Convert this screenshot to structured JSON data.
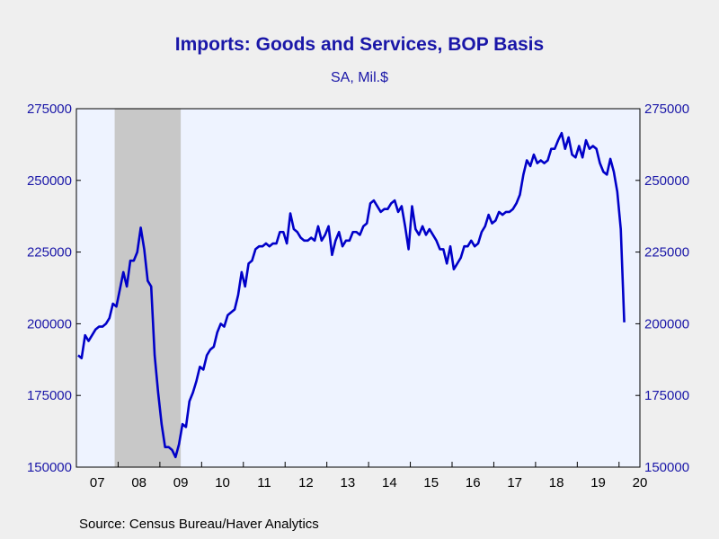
{
  "title": "Imports: Goods and Services, BOP Basis",
  "subtitle": "SA, Mil.$",
  "source": "Source:  Census Bureau/Haver Analytics",
  "colors": {
    "line": "#0000c8",
    "plot_bg": "#eef3ff",
    "recession": "#c8c8c8",
    "axis_text": "#1a17a8",
    "year_text": "#000000"
  },
  "chart_data": {
    "type": "line",
    "title": "Imports: Goods and Services, BOP Basis",
    "subtitle": "SA, Mil.$",
    "xlabel": "",
    "ylabel": "",
    "x_start": "2007-01",
    "x_range": [
      "2007-01",
      "2020-06"
    ],
    "ylim": [
      150000,
      275000
    ],
    "yticks": [
      150000,
      175000,
      200000,
      225000,
      250000,
      275000
    ],
    "y_tick_labels": [
      "150000",
      "175000",
      "200000",
      "225000",
      "250000",
      "275000"
    ],
    "x_tick_labels": [
      "07",
      "08",
      "09",
      "10",
      "11",
      "12",
      "13",
      "14",
      "15",
      "16",
      "17",
      "18",
      "19",
      "20"
    ],
    "shaded_periods": [
      {
        "label": "recession",
        "start": "2007-12",
        "end": "2009-06"
      }
    ],
    "grid": false,
    "secondary_y_axis": true,
    "series": [
      {
        "frequency": "monthly",
        "values": [
          189000,
          188000,
          196000,
          194000,
          196000,
          198000,
          199000,
          199000,
          200000,
          202000,
          207000,
          206000,
          212000,
          218000,
          213000,
          222000,
          222000,
          225000,
          233500,
          226000,
          215000,
          213000,
          189000,
          176000,
          165000,
          157000,
          157000,
          156000,
          153500,
          158000,
          165000,
          164000,
          173000,
          176000,
          180000,
          185000,
          184000,
          189000,
          191000,
          192000,
          197000,
          200000,
          199000,
          203000,
          204000,
          205000,
          210000,
          218000,
          213000,
          221000,
          222000,
          226000,
          227000,
          227000,
          228000,
          227000,
          228000,
          228000,
          232000,
          232000,
          228000,
          238500,
          233000,
          232000,
          230000,
          229000,
          229000,
          230000,
          229000,
          234000,
          229000,
          231000,
          234000,
          224000,
          229000,
          232000,
          227000,
          229000,
          229000,
          232000,
          232000,
          231000,
          234000,
          235000,
          242000,
          243000,
          241000,
          239000,
          240000,
          240000,
          242000,
          243000,
          239000,
          241000,
          234000,
          226000,
          241000,
          233000,
          231000,
          234000,
          231000,
          233000,
          231000,
          229000,
          226000,
          226000,
          221000,
          227000,
          219000,
          221000,
          223000,
          227000,
          227000,
          229000,
          227000,
          228000,
          232000,
          234000,
          238000,
          235000,
          236000,
          239000,
          238000,
          239000,
          239000,
          240000,
          242000,
          245000,
          252000,
          257000,
          255000,
          259000,
          256000,
          257000,
          256000,
          257000,
          261000,
          261000,
          264000,
          266500,
          261000,
          265000,
          259000,
          258000,
          262000,
          258000,
          264000,
          261000,
          262000,
          261000,
          256000,
          253000,
          252000,
          257500,
          253000,
          246000,
          233000,
          200500
        ]
      }
    ]
  }
}
